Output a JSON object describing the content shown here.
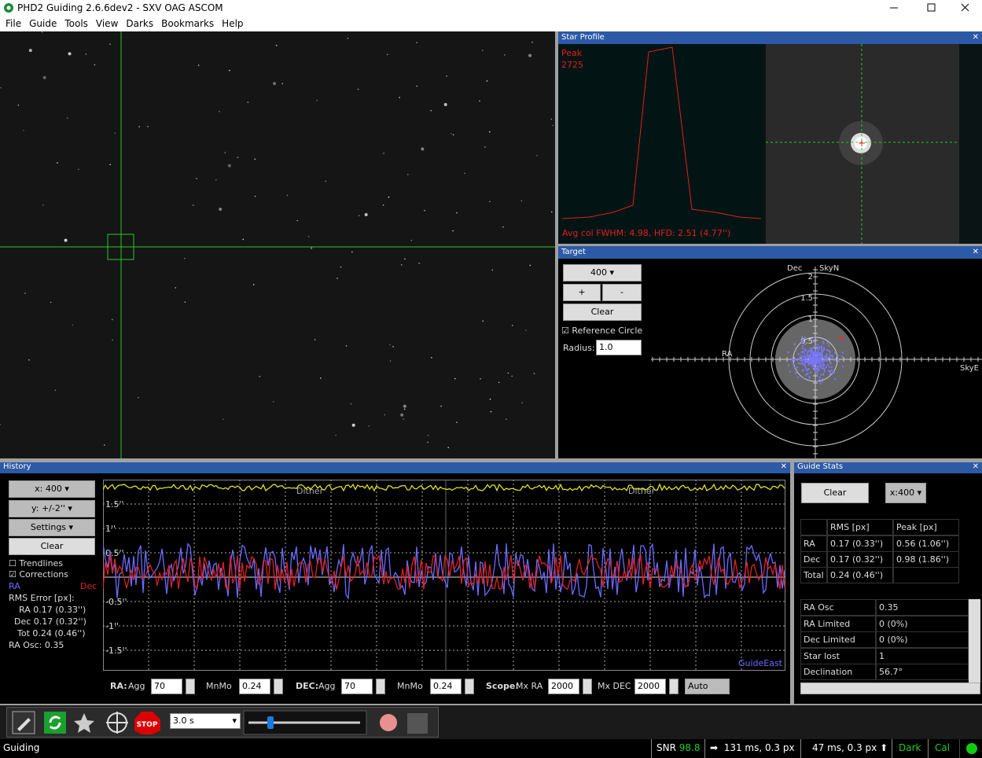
{
  "window": {
    "title": "PHD2 Guiding 2.6.6dev2 - SXV OAG ASCOM"
  },
  "menu": [
    "File",
    "Guide",
    "Tools",
    "View",
    "Darks",
    "Bookmarks",
    "Help"
  ],
  "star_profile": {
    "title": "Star Profile",
    "peak_label": "Peak",
    "peak_value": "2725",
    "fwhm_text": "Avg col FWHM: 4.98, HFD: 2.51 (4.77'')"
  },
  "target": {
    "title": "Target",
    "scale": "400",
    "plus": "+",
    "minus": "-",
    "clear": "Clear",
    "reference_circle": "Reference Circle",
    "radius_label": "Radius:",
    "radius": "1.0",
    "dec_label": "Dec",
    "north_label": "SkyN",
    "ra_label": "RA",
    "east_label": "SkyE",
    "ring_labels": [
      "2",
      "1.5",
      "1",
      "0.5"
    ]
  },
  "history": {
    "title": "History",
    "x_button": "x: 400",
    "y_button": "y: +/-2''",
    "settings": "Settings",
    "clear": "Clear",
    "trendlines": "Trendlines",
    "corrections": "Corrections",
    "ra_legend": "RA",
    "dec_legend": "Dec",
    "rms_title": "RMS Error [px]:",
    "rms_ra": "RA 0.17 (0.33'')",
    "rms_dec": "Dec 0.17 (0.32'')",
    "rms_tot": "Tot 0.24 (0.46'')",
    "ra_osc": "RA Osc: 0.35",
    "y_labels": [
      "1.5''",
      "1''",
      "0.5''",
      "-0.5''",
      "-1''",
      "-1.5''"
    ],
    "dither_labels": [
      "Dither",
      "Dither"
    ],
    "guide_label": "GuideEast",
    "params": {
      "ra": "RA:",
      "ra_agg": "Agg",
      "ra_agg_v": "70",
      "ra_mnmo": "MnMo",
      "ra_mnmo_v": "0.24",
      "dec": "DEC:",
      "dec_agg": "Agg",
      "dec_agg_v": "70",
      "dec_mnmo": "MnMo",
      "dec_mnmo_v": "0.24",
      "scope": "Scope:",
      "mx_ra": "Mx RA",
      "mx_ra_v": "2000",
      "mx_dec": "Mx DEC",
      "mx_dec_v": "2000",
      "mode": "Auto"
    }
  },
  "guide_stats": {
    "title": "Guide Stats",
    "clear": "Clear",
    "scale": "x:400",
    "table": {
      "header": [
        "RMS [px]",
        "Peak [px]"
      ],
      "rows": [
        [
          "RA",
          "0.17 (0.33'')",
          "0.56 (1.06'')"
        ],
        [
          "Dec",
          "0.17 (0.32'')",
          "0.98 (1.86'')"
        ],
        [
          "Total",
          "0.24 (0.46'')",
          ""
        ]
      ]
    },
    "info": [
      [
        "RA Osc",
        "0.35"
      ],
      [
        "RA Limited",
        "0 (0%)"
      ],
      [
        "Dec Limited",
        "0 (0%)"
      ],
      [
        "Star lost",
        "1"
      ],
      [
        "Declination",
        "56.7°"
      ]
    ]
  },
  "toolbar": {
    "exposure": "3.0 s"
  },
  "status": {
    "state": "Guiding",
    "snr_label": "SNR",
    "snr": "98.8",
    "ra_pulse": "131 ms, 0.3 px",
    "dec_pulse": "47 ms, 0.3 px",
    "dark": "Dark",
    "cal": "Cal"
  }
}
